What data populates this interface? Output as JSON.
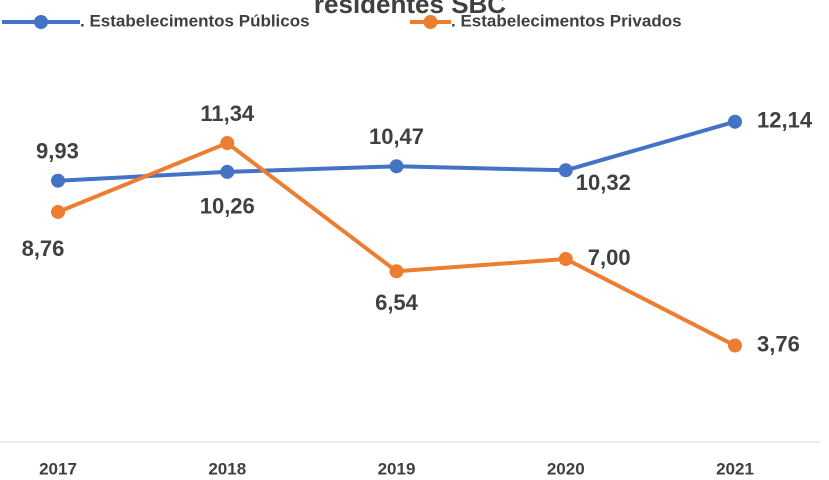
{
  "chart_data": {
    "type": "line",
    "title": "residentes SBC",
    "categories": [
      "2017",
      "2018",
      "2019",
      "2020",
      "2021"
    ],
    "series": [
      {
        "name": ". Estabelecimentos Públicos",
        "color": "#4472c4",
        "values": [
          9.93,
          10.26,
          10.47,
          10.32,
          12.14
        ],
        "value_labels": [
          "9,93",
          "10,26",
          "10,47",
          "10,32",
          "12,14"
        ]
      },
      {
        "name": ". Estabelecimentos Privados",
        "color": "#ed7d31",
        "values": [
          8.76,
          11.34,
          6.54,
          7.0,
          3.76
        ],
        "value_labels": [
          "8,76",
          "11,34",
          "6,54",
          "7,00",
          "3,76"
        ]
      }
    ],
    "ylim": [
      0,
      14
    ],
    "grid": false,
    "legend": "top"
  }
}
